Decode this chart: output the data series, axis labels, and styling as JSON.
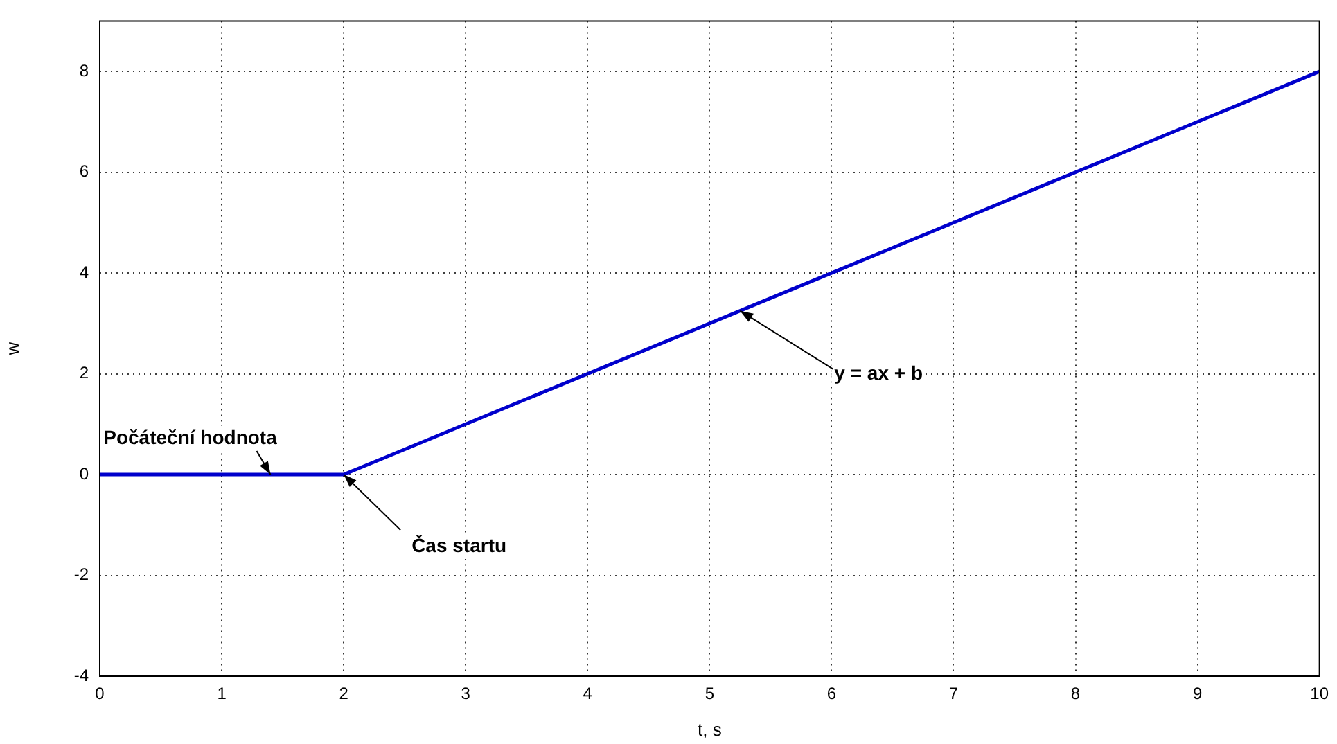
{
  "chart_data": {
    "type": "line",
    "xlabel": "t, s",
    "ylabel": "w",
    "x": [
      0,
      2,
      10
    ],
    "series": [
      {
        "color": "#0000cc",
        "values": [
          0,
          0,
          8
        ]
      }
    ],
    "xlim": [
      0,
      10
    ],
    "xticks": [
      0,
      1,
      2,
      3,
      4,
      5,
      6,
      7,
      8,
      9,
      10
    ],
    "ylim": [
      -4,
      9
    ],
    "yticks": [
      -4,
      -2,
      0,
      2,
      4,
      6,
      8
    ],
    "grid": true,
    "legend": false,
    "marker": "none",
    "line_style": "solid",
    "annotations": [
      {
        "text": "Počáteční hodnota",
        "x": 1.4,
        "y": 0
      },
      {
        "text": "Čas startu",
        "x": 2,
        "y": 0
      },
      {
        "text": "y = ax + b",
        "x": 5.25,
        "y": 3.25
      }
    ]
  }
}
